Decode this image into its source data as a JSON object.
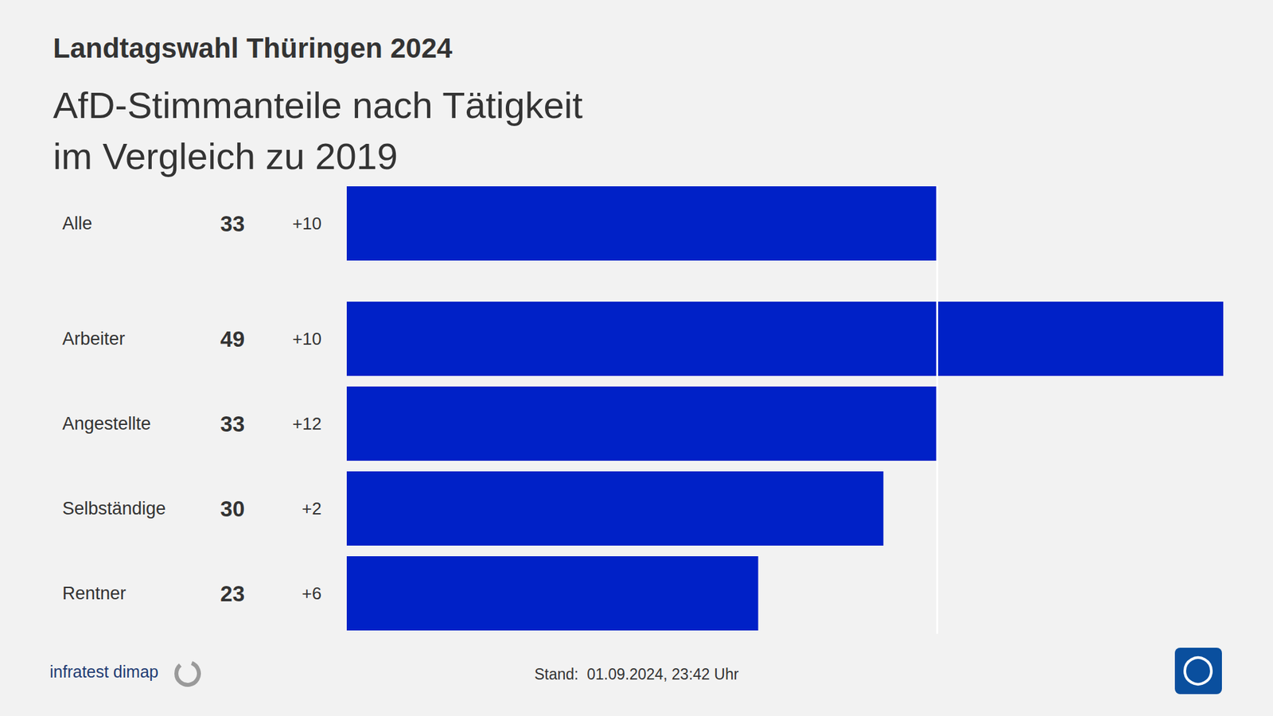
{
  "chart_data": {
    "type": "bar",
    "orientation": "horizontal",
    "title": "Landtagswahl Thüringen 2024",
    "subtitle": "AfD-Stimmanteile nach Tätigkeit\nim Vergleich zu 2019",
    "categories": [
      "Alle",
      "Arbeiter",
      "Angestellte",
      "Selbständige",
      "Rentner"
    ],
    "values": [
      33,
      49,
      33,
      30,
      23
    ],
    "change_labels": [
      "+10",
      "+10",
      "+12",
      "+2",
      "+6"
    ],
    "reference_line": 33,
    "color": "#0021c7",
    "xlim": [
      0,
      49
    ],
    "grid": false,
    "tick_labels": false,
    "data_labels": true,
    "source": "infratest dimap",
    "footer": "Stand:  01.09.2024, 23:42 Uhr"
  }
}
